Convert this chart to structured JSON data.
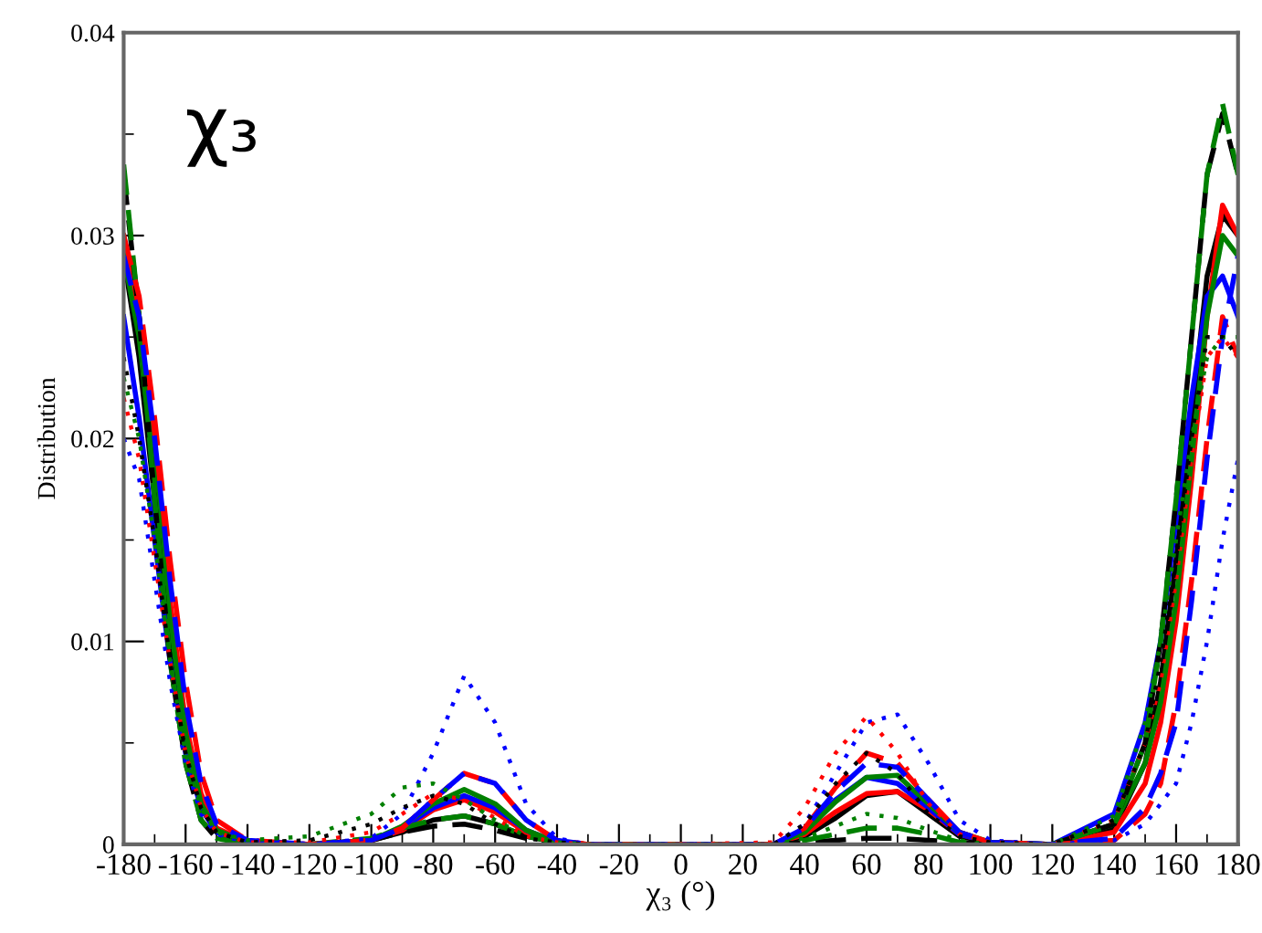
{
  "chart_data": {
    "type": "line",
    "xlabel": "χ₃ (°)",
    "ylabel": "Distribution",
    "annotations": [
      "χ₃"
    ],
    "x": [
      -180,
      -175,
      -170,
      -165,
      -160,
      -155,
      -150,
      -140,
      -120,
      -100,
      -90,
      -80,
      -70,
      -60,
      -50,
      -40,
      -30,
      0,
      30,
      40,
      50,
      60,
      70,
      80,
      90,
      100,
      120,
      140,
      150,
      155,
      160,
      165,
      170,
      175,
      180
    ],
    "xlim": [
      -180,
      180
    ],
    "xticks": [
      -180,
      -160,
      -140,
      -120,
      -100,
      -80,
      -60,
      -40,
      -20,
      0,
      20,
      40,
      60,
      80,
      100,
      120,
      140,
      160,
      180
    ],
    "ylim": [
      0,
      0.04
    ],
    "yticks": [
      0,
      0.01,
      0.02,
      0.03,
      0.04
    ],
    "grid": false,
    "marker": "none",
    "series": [
      {
        "color": "#000000",
        "line_style": "solid",
        "values": [
          0.029,
          0.024,
          0.017,
          0.01,
          0.005,
          0.0018,
          0.0006,
          0.0001,
          0,
          0.0002,
          0.0006,
          0.0012,
          0.0014,
          0.001,
          0.0004,
          0.0001,
          0,
          0,
          0,
          0.0004,
          0.0013,
          0.0024,
          0.0026,
          0.0015,
          0.0004,
          0.0001,
          0,
          0.0008,
          0.004,
          0.008,
          0.014,
          0.021,
          0.028,
          0.031,
          0.03
        ]
      },
      {
        "color": "#ff0000",
        "line_style": "solid",
        "values": [
          0.03,
          0.026,
          0.019,
          0.012,
          0.006,
          0.0025,
          0.0008,
          0.0001,
          0,
          0.0002,
          0.0007,
          0.0017,
          0.0022,
          0.0016,
          0.0006,
          0.0001,
          0,
          0,
          0,
          0.0005,
          0.0016,
          0.0025,
          0.0026,
          0.0017,
          0.0005,
          0.0001,
          0,
          0.0006,
          0.003,
          0.006,
          0.011,
          0.018,
          0.026,
          0.0315,
          0.03
        ]
      },
      {
        "color": "#0000ff",
        "line_style": "solid",
        "values": [
          0.026,
          0.021,
          0.015,
          0.009,
          0.0045,
          0.0018,
          0.0006,
          0.0001,
          0,
          0.0002,
          0.0008,
          0.0018,
          0.0024,
          0.0018,
          0.0007,
          0.0001,
          0,
          0,
          0,
          0.0007,
          0.0022,
          0.0033,
          0.003,
          0.0018,
          0.0005,
          0.0001,
          0,
          0.0015,
          0.006,
          0.01,
          0.016,
          0.022,
          0.027,
          0.028,
          0.026
        ]
      },
      {
        "color": "#008000",
        "line_style": "solid",
        "values": [
          0.029,
          0.025,
          0.018,
          0.011,
          0.0055,
          0.002,
          0.0007,
          0.0001,
          0,
          0.0002,
          0.0009,
          0.002,
          0.0027,
          0.002,
          0.0007,
          0.0001,
          0,
          0,
          0,
          0.0006,
          0.0021,
          0.0033,
          0.0034,
          0.002,
          0.0006,
          0.0001,
          0,
          0.001,
          0.004,
          0.007,
          0.012,
          0.019,
          0.026,
          0.03,
          0.029
        ]
      },
      {
        "color": "#000000",
        "line_style": "dashed",
        "values": [
          0.033,
          0.026,
          0.017,
          0.009,
          0.004,
          0.0012,
          0.0003,
          0,
          0,
          0.0002,
          0.0006,
          0.0009,
          0.001,
          0.0007,
          0.0003,
          0.0001,
          0,
          0,
          0,
          0.0001,
          0.0002,
          0.0003,
          0.0003,
          0.0002,
          0.0001,
          0,
          0,
          0.001,
          0.005,
          0.01,
          0.017,
          0.025,
          0.033,
          0.036,
          0.033
        ]
      },
      {
        "color": "#008000",
        "line_style": "dashed",
        "values": [
          0.0335,
          0.026,
          0.017,
          0.009,
          0.004,
          0.0012,
          0.0003,
          0,
          0,
          0.0003,
          0.0008,
          0.0012,
          0.0014,
          0.001,
          0.0004,
          0.0001,
          0,
          0,
          0,
          0.0002,
          0.0005,
          0.0008,
          0.0008,
          0.0005,
          0.0001,
          0,
          0,
          0.001,
          0.005,
          0.01,
          0.017,
          0.025,
          0.033,
          0.0365,
          0.033
        ]
      },
      {
        "color": "#ff0000",
        "line_style": "dashed",
        "values": [
          0.03,
          0.027,
          0.021,
          0.014,
          0.008,
          0.0035,
          0.0012,
          0.0002,
          0,
          0.0002,
          0.0008,
          0.0022,
          0.0035,
          0.003,
          0.0012,
          0.0002,
          0,
          0,
          0,
          0.0008,
          0.0028,
          0.0045,
          0.004,
          0.0022,
          0.0006,
          0.0001,
          0,
          0.0002,
          0.0015,
          0.003,
          0.007,
          0.013,
          0.02,
          0.026,
          0.024
        ]
      },
      {
        "color": "#0000ff",
        "line_style": "dashed",
        "values": [
          0.029,
          0.026,
          0.02,
          0.013,
          0.007,
          0.003,
          0.001,
          0.0002,
          0,
          0.0002,
          0.0008,
          0.0022,
          0.0035,
          0.003,
          0.0012,
          0.0002,
          0,
          0,
          0,
          0.0008,
          0.0026,
          0.004,
          0.0038,
          0.0022,
          0.0006,
          0.0001,
          0,
          0.0003,
          0.0018,
          0.0035,
          0.006,
          0.012,
          0.019,
          0.025,
          0.029
        ]
      },
      {
        "color": "#0000ff",
        "line_style": "dotted",
        "values": [
          0.02,
          0.018,
          0.013,
          0.008,
          0.004,
          0.0015,
          0.0005,
          0.0001,
          0,
          0.0003,
          0.0015,
          0.0045,
          0.0083,
          0.006,
          0.002,
          0.0003,
          0,
          0,
          0,
          0.001,
          0.0035,
          0.006,
          0.0064,
          0.004,
          0.0012,
          0.0002,
          0,
          0.0002,
          0.001,
          0.002,
          0.003,
          0.006,
          0.01,
          0.015,
          0.019
        ]
      },
      {
        "color": "#ff0000",
        "line_style": "dotted",
        "values": [
          0.022,
          0.019,
          0.014,
          0.009,
          0.0045,
          0.0018,
          0.0006,
          0.0001,
          0.0001,
          0.0006,
          0.0015,
          0.0025,
          0.0022,
          0.0013,
          0.0004,
          0.0001,
          0,
          0,
          0.0001,
          0.0018,
          0.0045,
          0.0063,
          0.0045,
          0.002,
          0.0005,
          0.0001,
          0,
          0.0012,
          0.005,
          0.008,
          0.013,
          0.019,
          0.024,
          0.025,
          0.024
        ]
      },
      {
        "color": "#008000",
        "line_style": "dotted",
        "values": [
          0.023,
          0.02,
          0.015,
          0.009,
          0.0045,
          0.0018,
          0.0006,
          0.0002,
          0.0004,
          0.0015,
          0.0028,
          0.003,
          0.0022,
          0.0012,
          0.0004,
          0.0001,
          0,
          0,
          0,
          0.0003,
          0.0009,
          0.0015,
          0.0013,
          0.0007,
          0.0002,
          0,
          0,
          0.0014,
          0.006,
          0.01,
          0.015,
          0.02,
          0.024,
          0.025,
          0.025
        ]
      },
      {
        "color": "#000000",
        "line_style": "dotted",
        "values": [
          0.024,
          0.02,
          0.015,
          0.009,
          0.0045,
          0.0018,
          0.0006,
          0.0001,
          0.0002,
          0.001,
          0.0018,
          0.0024,
          0.002,
          0.001,
          0.0003,
          0.0001,
          0,
          0,
          0,
          0.001,
          0.003,
          0.0045,
          0.0035,
          0.0015,
          0.0004,
          0.0001,
          0,
          0.0012,
          0.005,
          0.009,
          0.014,
          0.02,
          0.025,
          0.025,
          0.024
        ]
      }
    ]
  }
}
